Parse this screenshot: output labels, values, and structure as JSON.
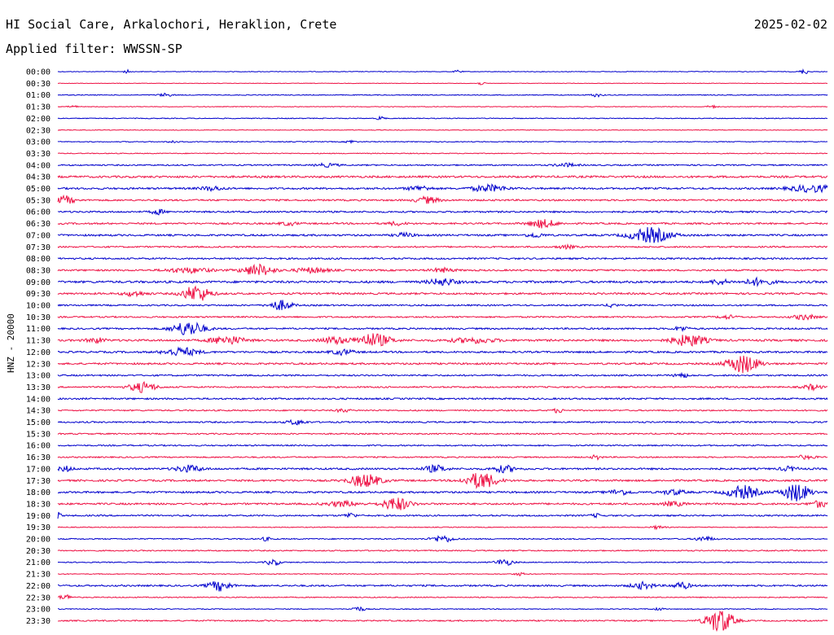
{
  "header": {
    "station": "HI Social Care, Arkalochori, Heraklion, Crete",
    "date": "2025-02-02",
    "filter": "Applied filter: WWSSN-SP"
  },
  "chart_data": {
    "type": "helicorder",
    "ylabel": "HNZ - 20000",
    "row_colors": [
      "#0000cc",
      "#ee1144"
    ],
    "rows": [
      {
        "time": "00:00",
        "noise": 0.4,
        "events": [
          {
            "pos": 0.97,
            "amp": 3,
            "w": 0.004
          },
          {
            "pos": 0.09,
            "amp": 2,
            "w": 0.003
          },
          {
            "pos": 0.52,
            "amp": 2,
            "w": 0.003
          }
        ]
      },
      {
        "time": "00:30",
        "noise": 0.3,
        "events": [
          {
            "pos": 0.55,
            "amp": 2,
            "w": 0.003
          }
        ]
      },
      {
        "time": "01:00",
        "noise": 0.5,
        "events": [
          {
            "pos": 0.14,
            "amp": 2,
            "w": 0.006
          },
          {
            "pos": 0.7,
            "amp": 2,
            "w": 0.005
          }
        ]
      },
      {
        "time": "01:30",
        "noise": 0.4,
        "events": [
          {
            "pos": 0.85,
            "amp": 2,
            "w": 0.004
          },
          {
            "pos": 0.02,
            "amp": 1.5,
            "w": 0.004
          }
        ]
      },
      {
        "time": "02:00",
        "noise": 0.5,
        "events": [
          {
            "pos": 0.42,
            "amp": 3,
            "w": 0.003
          }
        ]
      },
      {
        "time": "02:30",
        "noise": 0.4,
        "events": []
      },
      {
        "time": "03:00",
        "noise": 0.5,
        "events": [
          {
            "pos": 0.15,
            "amp": 2,
            "w": 0.004
          },
          {
            "pos": 0.38,
            "amp": 2,
            "w": 0.004
          }
        ]
      },
      {
        "time": "03:30",
        "noise": 0.5,
        "events": []
      },
      {
        "time": "04:00",
        "noise": 0.8,
        "events": [
          {
            "pos": 0.35,
            "amp": 2,
            "w": 0.01
          },
          {
            "pos": 0.66,
            "amp": 2,
            "w": 0.01
          }
        ]
      },
      {
        "time": "04:30",
        "noise": 1.2,
        "events": []
      },
      {
        "time": "05:00",
        "noise": 1.1,
        "events": [
          {
            "pos": 0.56,
            "amp": 4,
            "w": 0.015
          },
          {
            "pos": 0.98,
            "amp": 4,
            "w": 0.02
          },
          {
            "pos": 0.47,
            "amp": 3,
            "w": 0.01
          },
          {
            "pos": 0.2,
            "amp": 2.5,
            "w": 0.01
          }
        ]
      },
      {
        "time": "05:30",
        "noise": 1.0,
        "events": [
          {
            "pos": 0.01,
            "amp": 5,
            "w": 0.008
          },
          {
            "pos": 0.48,
            "amp": 4,
            "w": 0.01
          }
        ]
      },
      {
        "time": "06:00",
        "noise": 1.0,
        "events": [
          {
            "pos": 0.13,
            "amp": 3,
            "w": 0.006
          }
        ]
      },
      {
        "time": "06:30",
        "noise": 1.0,
        "events": [
          {
            "pos": 0.63,
            "amp": 5,
            "w": 0.012
          },
          {
            "pos": 0.3,
            "amp": 2,
            "w": 0.008
          },
          {
            "pos": 0.44,
            "amp": 2,
            "w": 0.008
          }
        ]
      },
      {
        "time": "07:00",
        "noise": 1.1,
        "events": [
          {
            "pos": 0.77,
            "amp": 9,
            "w": 0.018
          },
          {
            "pos": 0.45,
            "amp": 2.5,
            "w": 0.008
          },
          {
            "pos": 0.62,
            "amp": 2.5,
            "w": 0.008
          }
        ]
      },
      {
        "time": "07:30",
        "noise": 0.9,
        "events": [
          {
            "pos": 0.66,
            "amp": 2,
            "w": 0.008
          }
        ]
      },
      {
        "time": "08:00",
        "noise": 1.0,
        "events": []
      },
      {
        "time": "08:30",
        "noise": 1.0,
        "events": [
          {
            "pos": 0.26,
            "amp": 7,
            "w": 0.014
          },
          {
            "pos": 0.17,
            "amp": 3,
            "w": 0.02
          },
          {
            "pos": 0.33,
            "amp": 3,
            "w": 0.015
          },
          {
            "pos": 0.5,
            "amp": 2.5,
            "w": 0.01
          }
        ]
      },
      {
        "time": "09:00",
        "noise": 1.3,
        "events": [
          {
            "pos": 0.5,
            "amp": 4,
            "w": 0.012
          },
          {
            "pos": 0.91,
            "amp": 4,
            "w": 0.012
          },
          {
            "pos": 0.86,
            "amp": 3,
            "w": 0.008
          }
        ]
      },
      {
        "time": "09:30",
        "noise": 1.1,
        "events": [
          {
            "pos": 0.18,
            "amp": 10,
            "w": 0.012
          },
          {
            "pos": 0.1,
            "amp": 3,
            "w": 0.01
          }
        ]
      },
      {
        "time": "10:00",
        "noise": 0.9,
        "events": [
          {
            "pos": 0.29,
            "amp": 6,
            "w": 0.01
          },
          {
            "pos": 0.72,
            "amp": 3,
            "w": 0.004
          }
        ]
      },
      {
        "time": "10:30",
        "noise": 0.9,
        "events": [
          {
            "pos": 0.97,
            "amp": 3,
            "w": 0.01
          },
          {
            "pos": 0.87,
            "amp": 2,
            "w": 0.008
          }
        ]
      },
      {
        "time": "11:00",
        "noise": 1.0,
        "events": [
          {
            "pos": 0.17,
            "amp": 9,
            "w": 0.014
          },
          {
            "pos": 0.81,
            "amp": 3,
            "w": 0.006
          }
        ]
      },
      {
        "time": "11:30",
        "noise": 1.2,
        "events": [
          {
            "pos": 0.41,
            "amp": 8,
            "w": 0.015
          },
          {
            "pos": 0.82,
            "amp": 7,
            "w": 0.015
          },
          {
            "pos": 0.22,
            "amp": 5,
            "w": 0.015
          },
          {
            "pos": 0.36,
            "amp": 4,
            "w": 0.012
          },
          {
            "pos": 0.54,
            "amp": 3,
            "w": 0.02
          },
          {
            "pos": 0.05,
            "amp": 3,
            "w": 0.008
          }
        ]
      },
      {
        "time": "12:00",
        "noise": 1.1,
        "events": [
          {
            "pos": 0.16,
            "amp": 5,
            "w": 0.015
          },
          {
            "pos": 0.37,
            "amp": 3,
            "w": 0.01
          }
        ]
      },
      {
        "time": "12:30",
        "noise": 1.1,
        "events": [
          {
            "pos": 0.89,
            "amp": 11,
            "w": 0.014
          }
        ]
      },
      {
        "time": "13:00",
        "noise": 0.9,
        "events": [
          {
            "pos": 0.81,
            "amp": 3,
            "w": 0.006
          }
        ]
      },
      {
        "time": "13:30",
        "noise": 0.9,
        "events": [
          {
            "pos": 0.11,
            "amp": 6,
            "w": 0.012
          },
          {
            "pos": 0.98,
            "amp": 3,
            "w": 0.008
          }
        ]
      },
      {
        "time": "14:00",
        "noise": 1.0,
        "events": []
      },
      {
        "time": "14:30",
        "noise": 0.8,
        "events": [
          {
            "pos": 0.65,
            "amp": 3,
            "w": 0.004
          },
          {
            "pos": 0.37,
            "amp": 2,
            "w": 0.006
          }
        ]
      },
      {
        "time": "15:00",
        "noise": 0.9,
        "events": [
          {
            "pos": 0.31,
            "amp": 3,
            "w": 0.008
          }
        ]
      },
      {
        "time": "15:30",
        "noise": 0.8,
        "events": []
      },
      {
        "time": "16:00",
        "noise": 0.8,
        "events": []
      },
      {
        "time": "16:30",
        "noise": 0.8,
        "events": [
          {
            "pos": 0.7,
            "amp": 3,
            "w": 0.004
          },
          {
            "pos": 0.97,
            "amp": 2,
            "w": 0.01
          }
        ]
      },
      {
        "time": "17:00",
        "noise": 1.1,
        "events": [
          {
            "pos": 0.17,
            "amp": 4,
            "w": 0.012
          },
          {
            "pos": 0.49,
            "amp": 4,
            "w": 0.01
          },
          {
            "pos": 0.58,
            "amp": 4,
            "w": 0.01
          },
          {
            "pos": 0.01,
            "amp": 3,
            "w": 0.006
          },
          {
            "pos": 0.95,
            "amp": 2.5,
            "w": 0.008
          }
        ]
      },
      {
        "time": "17:30",
        "noise": 1.1,
        "events": [
          {
            "pos": 0.4,
            "amp": 8,
            "w": 0.014
          },
          {
            "pos": 0.55,
            "amp": 10,
            "w": 0.014
          }
        ]
      },
      {
        "time": "18:00",
        "noise": 1.1,
        "events": [
          {
            "pos": 0.89,
            "amp": 8,
            "w": 0.014
          },
          {
            "pos": 0.96,
            "amp": 11,
            "w": 0.012
          },
          {
            "pos": 0.8,
            "amp": 3,
            "w": 0.01
          },
          {
            "pos": 0.73,
            "amp": 3,
            "w": 0.01
          }
        ]
      },
      {
        "time": "18:30",
        "noise": 1.1,
        "events": [
          {
            "pos": 0.44,
            "amp": 8,
            "w": 0.012
          },
          {
            "pos": 0.37,
            "amp": 3,
            "w": 0.015
          },
          {
            "pos": 0.99,
            "amp": 4,
            "w": 0.008
          },
          {
            "pos": 0.8,
            "amp": 2.5,
            "w": 0.01
          }
        ]
      },
      {
        "time": "19:00",
        "noise": 0.9,
        "events": [
          {
            "pos": 0.38,
            "amp": 3,
            "w": 0.005
          },
          {
            "pos": 0.0,
            "amp": 4,
            "w": 0.003
          },
          {
            "pos": 0.7,
            "amp": 2,
            "w": 0.005
          }
        ]
      },
      {
        "time": "19:30",
        "noise": 0.5,
        "events": [
          {
            "pos": 0.78,
            "amp": 2,
            "w": 0.006
          }
        ]
      },
      {
        "time": "20:00",
        "noise": 0.7,
        "events": [
          {
            "pos": 0.5,
            "amp": 4,
            "w": 0.01
          },
          {
            "pos": 0.84,
            "amp": 3,
            "w": 0.008
          },
          {
            "pos": 0.27,
            "amp": 2,
            "w": 0.005
          }
        ]
      },
      {
        "time": "20:30",
        "noise": 0.7,
        "events": []
      },
      {
        "time": "21:00",
        "noise": 0.6,
        "events": [
          {
            "pos": 0.28,
            "amp": 4,
            "w": 0.006
          },
          {
            "pos": 0.58,
            "amp": 4,
            "w": 0.008
          }
        ]
      },
      {
        "time": "21:30",
        "noise": 0.5,
        "events": [
          {
            "pos": 0.6,
            "amp": 2,
            "w": 0.004
          }
        ]
      },
      {
        "time": "22:00",
        "noise": 1.0,
        "events": [
          {
            "pos": 0.21,
            "amp": 6,
            "w": 0.01
          },
          {
            "pos": 0.76,
            "amp": 4,
            "w": 0.01
          },
          {
            "pos": 0.81,
            "amp": 4,
            "w": 0.008
          }
        ]
      },
      {
        "time": "22:30",
        "noise": 0.6,
        "events": [
          {
            "pos": 0.01,
            "amp": 3,
            "w": 0.006
          }
        ]
      },
      {
        "time": "23:00",
        "noise": 0.5,
        "events": [
          {
            "pos": 0.39,
            "amp": 3,
            "w": 0.006
          },
          {
            "pos": 0.78,
            "amp": 2,
            "w": 0.004
          }
        ]
      },
      {
        "time": "23:30",
        "noise": 0.8,
        "events": [
          {
            "pos": 0.86,
            "amp": 15,
            "w": 0.012
          }
        ]
      }
    ]
  }
}
